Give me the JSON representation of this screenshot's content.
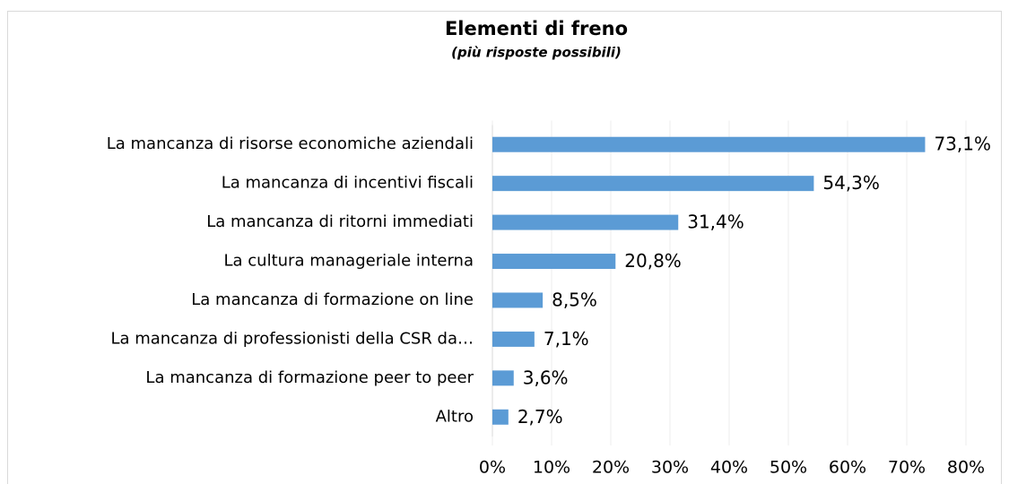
{
  "chart_data": {
    "type": "bar",
    "orientation": "horizontal",
    "title": "Elementi di freno",
    "subtitle": "(più risposte possibili)",
    "categories": [
      "La mancanza di risorse economiche aziendali",
      "La mancanza di incentivi fiscali",
      "La mancanza di ritorni immediati",
      "La cultura manageriale interna",
      "La mancanza di formazione on line",
      "La mancanza di professionisti della CSR da…",
      "La mancanza di formazione peer to peer",
      "Altro"
    ],
    "values": [
      73.1,
      54.3,
      31.4,
      20.8,
      8.5,
      7.1,
      3.6,
      2.7
    ],
    "value_labels": [
      "73,1%",
      "54,3%",
      "31,4%",
      "20,8%",
      "8,5%",
      "7,1%",
      "3,6%",
      "2,7%"
    ],
    "color": "#5b9bd5",
    "xlim": [
      0,
      80
    ],
    "xticks": [
      {
        "value": 0,
        "label": "0%"
      },
      {
        "value": 10,
        "label": "10%"
      },
      {
        "value": 20,
        "label": "20%"
      },
      {
        "value": 30,
        "label": "30%"
      },
      {
        "value": 40,
        "label": "40%"
      },
      {
        "value": 50,
        "label": "50%"
      },
      {
        "value": 60,
        "label": "60%"
      },
      {
        "value": 70,
        "label": "70%"
      },
      {
        "value": 80,
        "label": "80%"
      }
    ],
    "grid": true
  }
}
